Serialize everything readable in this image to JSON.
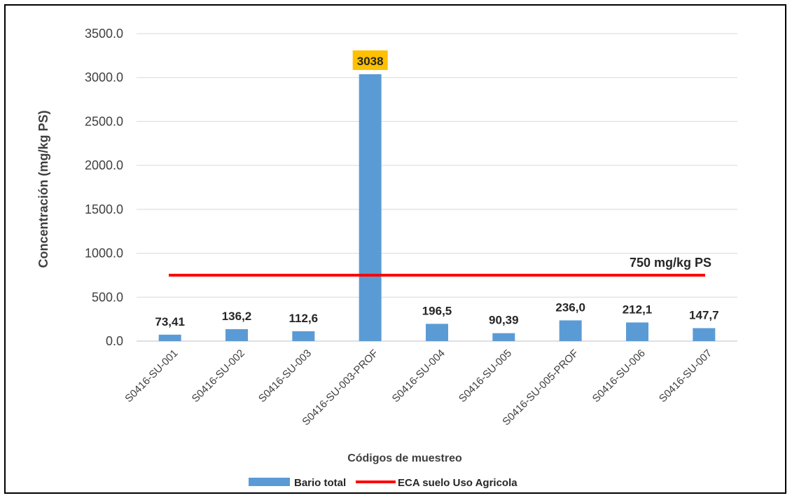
{
  "chart_data": {
    "type": "bar",
    "categories": [
      "S0416-SU-001",
      "S0416-SU-002",
      "S0416-SU-003",
      "S0416-SU-003-PROF",
      "S0416-SU-004",
      "S0416-SU-005",
      "S0416-SU-005-PROF",
      "S0416-SU-006",
      "S0416-SU-007"
    ],
    "series": [
      {
        "name": "Bario total",
        "values": [
          73.41,
          136.2,
          112.6,
          3038,
          196.5,
          90.39,
          236.0,
          212.1,
          147.7
        ],
        "labels": [
          "73,41",
          "136,2",
          "112,6",
          "3038",
          "196,5",
          "90,39",
          "236,0",
          "212,1",
          "147,7"
        ],
        "color": "#5B9BD5"
      }
    ],
    "threshold": {
      "name": "ECA suelo Uso Agricola",
      "value": 750,
      "label": "750 mg/kg PS",
      "color": "#FF0000"
    },
    "highlight_label_color": "#FFC000",
    "ylabel": "Concentración (mg/kg PS)",
    "xlabel": "Códigos de muestreo",
    "ylim": [
      0,
      3500
    ],
    "yticks": [
      0,
      500,
      1000,
      1500,
      2000,
      2500,
      3000,
      3500
    ],
    "ytick_labels": [
      "0.0",
      "500.0",
      "1000.0",
      "1500.0",
      "2000.0",
      "2500.0",
      "3000.0",
      "3500.0"
    ],
    "grid": true,
    "legend": "bottom"
  }
}
